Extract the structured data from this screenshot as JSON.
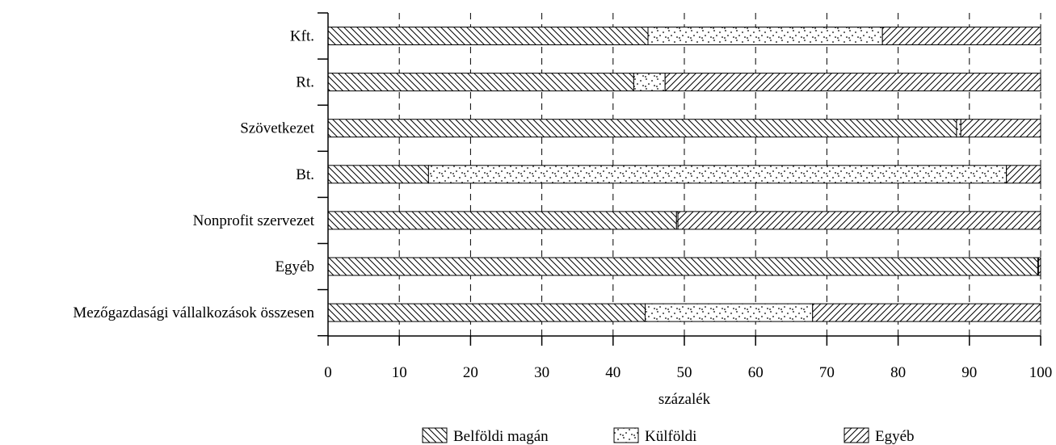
{
  "chart_data": {
    "type": "bar",
    "orientation": "horizontal",
    "stacked": true,
    "categories": [
      "Kft.",
      "Rt.",
      "Szövetkezet",
      "Bt.",
      "Nonprofit szervezet",
      "Egyéb",
      "Mezőgazdasági vállalkozások összesen"
    ],
    "series": [
      {
        "name": "Belföldi magán",
        "pattern": "backslash-hatch",
        "values": [
          44.9,
          42.9,
          88.2,
          14.1,
          48.9,
          99.6,
          44.5
        ]
      },
      {
        "name": "Külföldi",
        "pattern": "dots",
        "values": [
          32.9,
          4.4,
          0.6,
          81.1,
          0.2,
          0.1,
          23.5
        ]
      },
      {
        "name": "Egyéb",
        "pattern": "slash-hatch",
        "values": [
          22.2,
          52.7,
          11.2,
          4.8,
          50.9,
          0.3,
          32.0
        ]
      }
    ],
    "xlabel": "százalék",
    "ylabel": "",
    "xlim": [
      0,
      100
    ],
    "xticks": [
      "0",
      "10",
      "20",
      "30",
      "40",
      "50",
      "60",
      "70",
      "80",
      "90",
      "100"
    ],
    "grid": "vertical-dashed",
    "legend_position": "bottom"
  }
}
